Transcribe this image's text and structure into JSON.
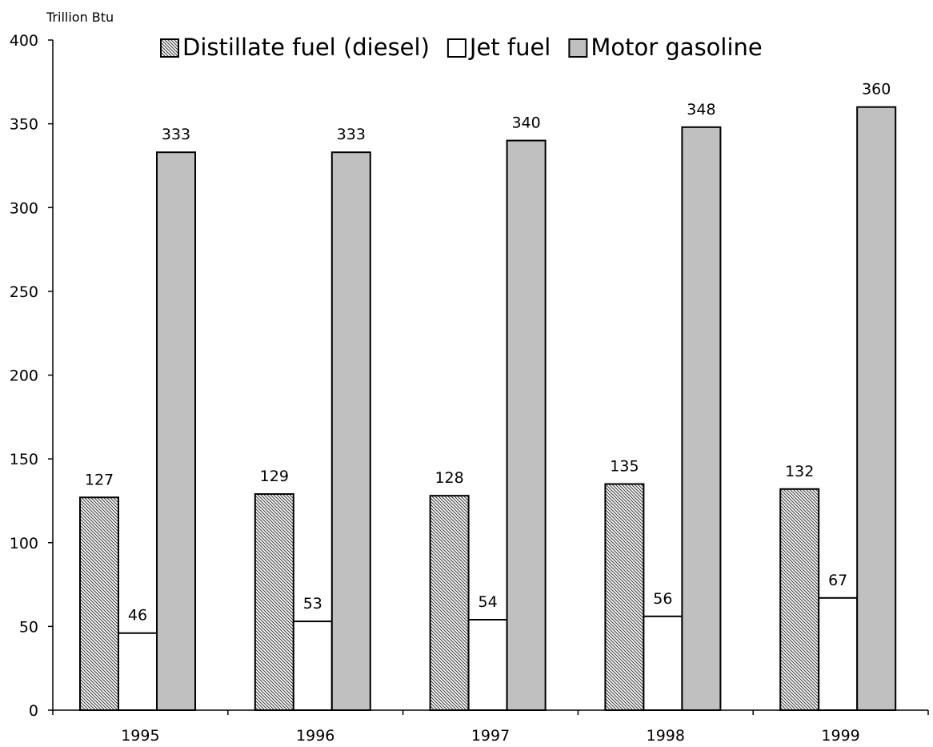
{
  "chart_data": {
    "type": "bar",
    "ylabel": "Trillion Btu",
    "xlabel": "",
    "ylim": [
      0,
      400
    ],
    "yticks": [
      0,
      50,
      100,
      150,
      200,
      250,
      300,
      350,
      400
    ],
    "categories": [
      "1995",
      "1996",
      "1997",
      "1998",
      "1999"
    ],
    "series": [
      {
        "name": "Distillate fuel (diesel)",
        "fill": "hatch",
        "values": [
          127,
          129,
          128,
          135,
          132
        ]
      },
      {
        "name": "Jet fuel",
        "fill": "#ffffff",
        "values": [
          46,
          53,
          54,
          56,
          67
        ]
      },
      {
        "name": "Motor gasoline",
        "fill": "#c0c0c0",
        "values": [
          333,
          333,
          340,
          348,
          360
        ]
      }
    ],
    "data_labels": true,
    "grid": false,
    "legend_position": "top"
  }
}
